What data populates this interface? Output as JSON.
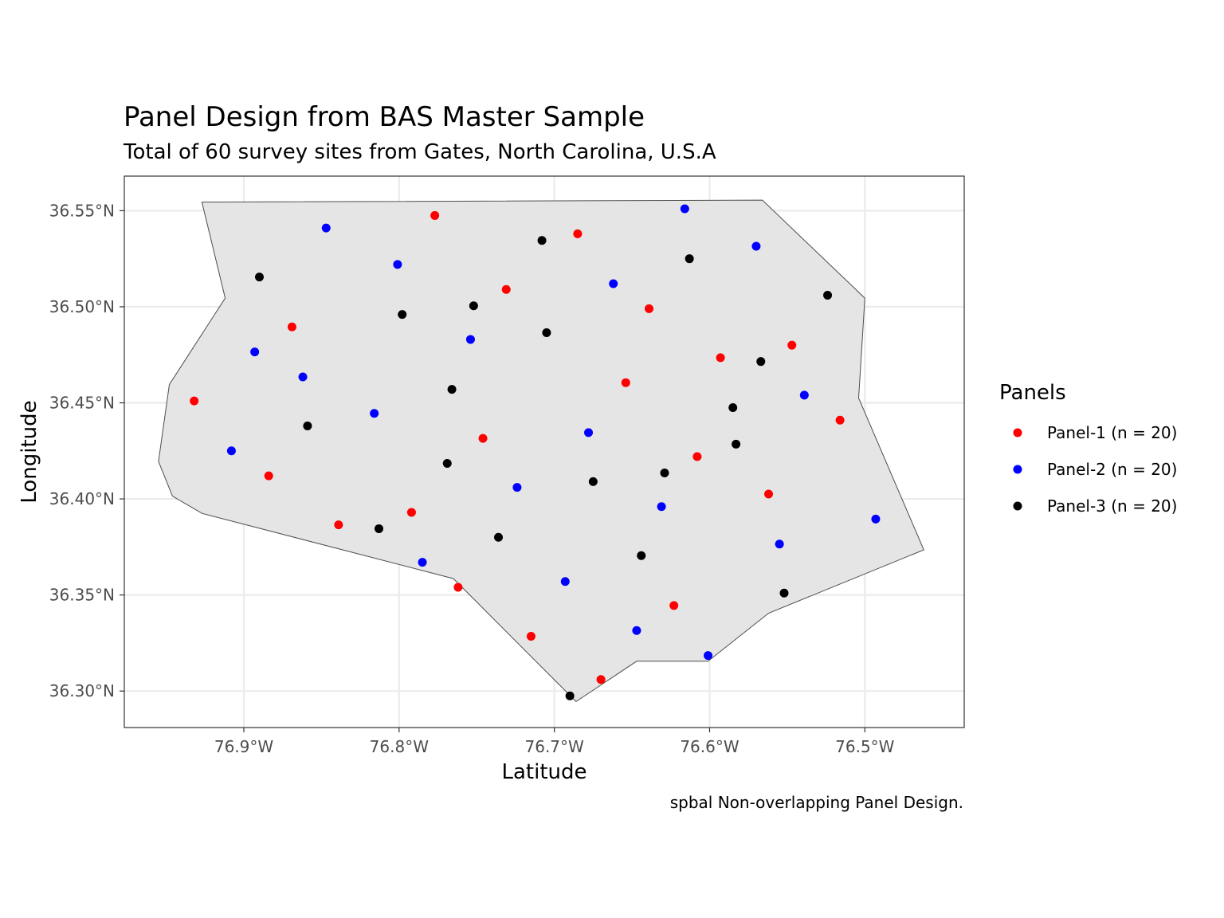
{
  "chart_data": {
    "type": "scatter",
    "title": "Panel Design from BAS Master Sample",
    "subtitle": "Total of 60 survey sites from Gates, North Carolina, U.S.A",
    "xlabel": "Latitude",
    "ylabel": "Longitude",
    "caption": "spbal Non-overlapping Panel Design.",
    "xlim": [
      -76.977,
      -76.436
    ],
    "ylim": [
      36.281,
      36.568
    ],
    "x_ticks": [
      -76.9,
      -76.8,
      -76.7,
      -76.6,
      -76.5
    ],
    "x_tick_labels": [
      "76.9°W",
      "76.8°W",
      "76.7°W",
      "76.6°W",
      "76.5°W"
    ],
    "y_ticks": [
      36.3,
      36.35,
      36.4,
      36.45,
      36.5,
      36.55
    ],
    "y_tick_labels": [
      "36.30°N",
      "36.35°N",
      "36.40°N",
      "36.45°N",
      "36.50°N",
      "36.55°N"
    ],
    "grid": true,
    "legend_title": "Panels",
    "legend_position": "right",
    "region_fill": "#e5e5e5",
    "region_outline": [
      [
        -76.927,
        36.5545
      ],
      [
        -76.566,
        36.5555
      ],
      [
        -76.5,
        36.5045
      ],
      [
        -76.504,
        36.4525
      ],
      [
        -76.462,
        36.3735
      ],
      [
        -76.562,
        36.3405
      ],
      [
        -76.601,
        36.3155
      ],
      [
        -76.647,
        36.3155
      ],
      [
        -76.686,
        36.2945
      ],
      [
        -76.765,
        36.3585
      ],
      [
        -76.927,
        36.3925
      ],
      [
        -76.946,
        36.4015
      ],
      [
        -76.955,
        36.4195
      ],
      [
        -76.948,
        36.4595
      ],
      [
        -76.912,
        36.5045
      ]
    ],
    "series": [
      {
        "name": "Panel-1 (n = 20)",
        "color": "#ff0000",
        "points": [
          [
            -76.932,
            36.451
          ],
          [
            -76.884,
            36.412
          ],
          [
            -76.869,
            36.4895
          ],
          [
            -76.839,
            36.3865
          ],
          [
            -76.792,
            36.393
          ],
          [
            -76.777,
            36.5475
          ],
          [
            -76.762,
            36.354
          ],
          [
            -76.746,
            36.4315
          ],
          [
            -76.731,
            36.509
          ],
          [
            -76.715,
            36.3285
          ],
          [
            -76.685,
            36.538
          ],
          [
            -76.67,
            36.306
          ],
          [
            -76.654,
            36.4605
          ],
          [
            -76.639,
            36.499
          ],
          [
            -76.623,
            36.3445
          ],
          [
            -76.608,
            36.422
          ],
          [
            -76.593,
            36.4735
          ],
          [
            -76.562,
            36.4025
          ],
          [
            -76.547,
            36.48
          ],
          [
            -76.516,
            36.441
          ]
        ]
      },
      {
        "name": "Panel-2 (n = 20)",
        "color": "#0000ff",
        "points": [
          [
            -76.908,
            36.425
          ],
          [
            -76.893,
            36.4765
          ],
          [
            -76.862,
            36.4635
          ],
          [
            -76.847,
            36.541
          ],
          [
            -76.816,
            36.4445
          ],
          [
            -76.801,
            36.522
          ],
          [
            -76.785,
            36.367
          ],
          [
            -76.754,
            36.483
          ],
          [
            -76.724,
            36.406
          ],
          [
            -76.693,
            36.357
          ],
          [
            -76.678,
            36.4345
          ],
          [
            -76.662,
            36.512
          ],
          [
            -76.647,
            36.3315
          ],
          [
            -76.631,
            36.396
          ],
          [
            -76.616,
            36.551
          ],
          [
            -76.601,
            36.3185
          ],
          [
            -76.57,
            36.5315
          ],
          [
            -76.555,
            36.3765
          ],
          [
            -76.539,
            36.454
          ],
          [
            -76.493,
            36.3895
          ]
        ]
      },
      {
        "name": "Panel-3 (n = 20)",
        "color": "#000000",
        "points": [
          [
            -76.89,
            36.5155
          ],
          [
            -76.859,
            36.438
          ],
          [
            -76.813,
            36.3845
          ],
          [
            -76.798,
            36.496
          ],
          [
            -76.769,
            36.4185
          ],
          [
            -76.766,
            36.457
          ],
          [
            -76.752,
            36.5005
          ],
          [
            -76.736,
            36.38
          ],
          [
            -76.708,
            36.5345
          ],
          [
            -76.705,
            36.4865
          ],
          [
            -76.69,
            36.2975
          ],
          [
            -76.675,
            36.409
          ],
          [
            -76.644,
            36.3705
          ],
          [
            -76.629,
            36.4135
          ],
          [
            -76.613,
            36.525
          ],
          [
            -76.585,
            36.4475
          ],
          [
            -76.583,
            36.4285
          ],
          [
            -76.567,
            36.4715
          ],
          [
            -76.552,
            36.351
          ],
          [
            -76.524,
            36.506
          ]
        ]
      }
    ]
  }
}
